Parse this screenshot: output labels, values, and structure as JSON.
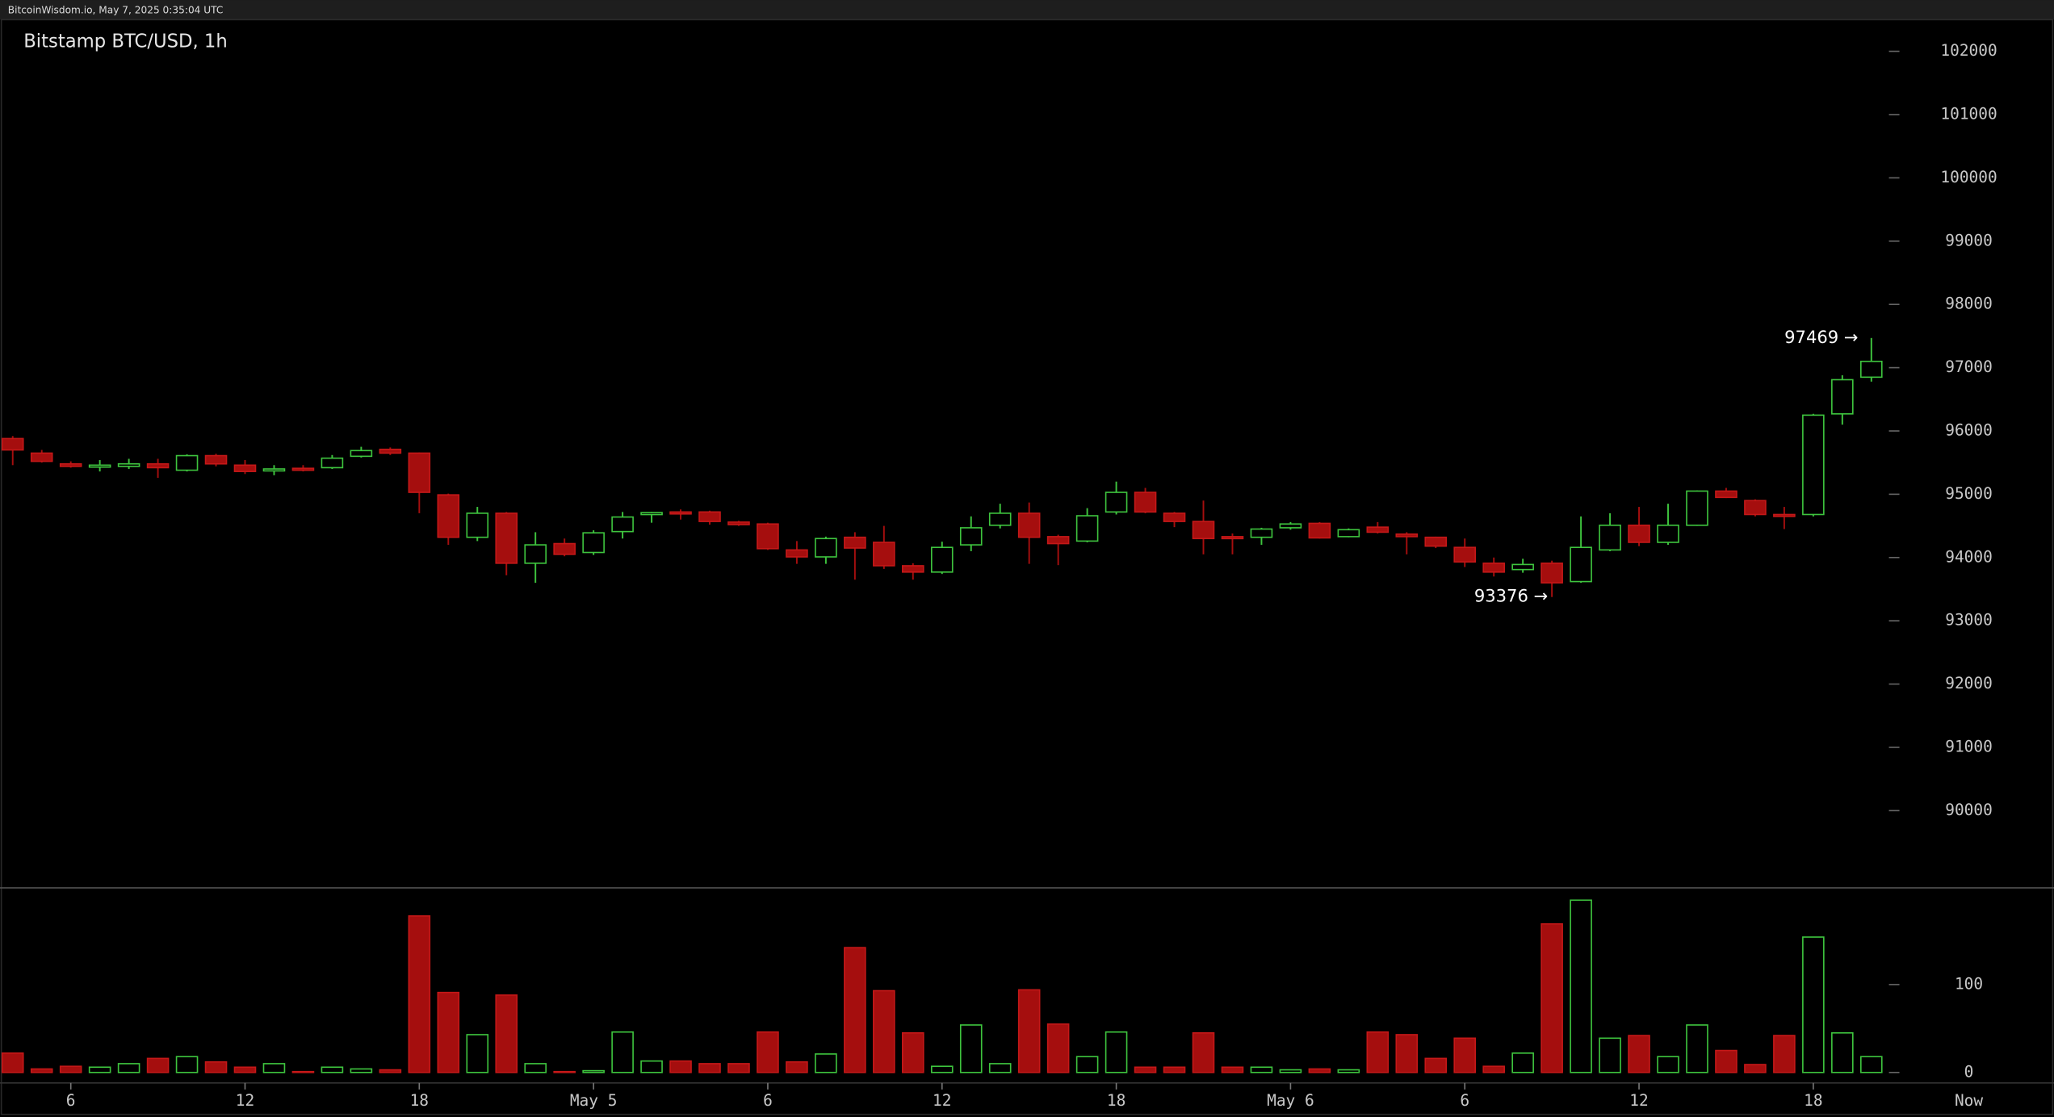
{
  "header": "BitcoinWisdom.io, May 7, 2025 0:35:04 UTC",
  "chart_data": {
    "type": "candlestick",
    "title": "Bitstamp BTC/USD, 1h",
    "categories": [
      null,
      null,
      "6",
      null,
      null,
      null,
      null,
      null,
      "12",
      null,
      null,
      null,
      null,
      null,
      "18",
      null,
      null,
      null,
      null,
      null,
      "May 5",
      null,
      null,
      null,
      null,
      null,
      "6",
      null,
      null,
      null,
      null,
      null,
      "12",
      null,
      null,
      null,
      null,
      null,
      "18",
      null,
      null,
      null,
      null,
      null,
      "May 6",
      null,
      null,
      null,
      null,
      null,
      "6",
      null,
      null,
      null,
      null,
      null,
      "12",
      null,
      null,
      null,
      null,
      null,
      "18",
      null,
      null
    ],
    "x_end_label": "Now",
    "open": [
      95880,
      95650,
      95480,
      95440,
      95440,
      95480,
      95380,
      95610,
      95460,
      95380,
      95410,
      95420,
      95600,
      95710,
      95650,
      94990,
      94320,
      94700,
      93910,
      94220,
      94080,
      94410,
      94690,
      94720,
      94720,
      94560,
      94530,
      94120,
      94010,
      94320,
      94240,
      93870,
      93770,
      94200,
      94510,
      94700,
      94330,
      94260,
      94720,
      95030,
      94700,
      94570,
      94330,
      94320,
      94470,
      94540,
      94330,
      94480,
      94370,
      94320,
      94160,
      93910,
      93810,
      93910,
      93620,
      94120,
      94510,
      94240,
      94510,
      95050,
      94900,
      94680,
      94680,
      96270,
      96850
    ],
    "high": [
      95920,
      95700,
      95520,
      95540,
      95560,
      95560,
      95630,
      95640,
      95540,
      95460,
      95460,
      95620,
      95750,
      95740,
      95660,
      95010,
      94800,
      94720,
      94400,
      94300,
      94430,
      94720,
      94720,
      94760,
      94740,
      94580,
      94550,
      94260,
      94330,
      94400,
      94500,
      93910,
      94250,
      94650,
      94850,
      94870,
      94360,
      94780,
      95200,
      95100,
      94720,
      94900,
      94380,
      94470,
      94560,
      94560,
      94460,
      94560,
      94400,
      94330,
      94300,
      94000,
      93980,
      93950,
      94650,
      94700,
      94800,
      94850,
      95060,
      95100,
      94920,
      94800,
      96270,
      96880,
      97469
    ],
    "low": [
      95460,
      95500,
      95420,
      95360,
      95400,
      95260,
      95360,
      95440,
      95320,
      95300,
      95360,
      95400,
      95580,
      95620,
      94700,
      94200,
      94260,
      93720,
      93600,
      94020,
      94040,
      94300,
      94550,
      94600,
      94520,
      94500,
      94120,
      93900,
      93900,
      93650,
      93820,
      93650,
      93740,
      94100,
      94460,
      93900,
      93880,
      94240,
      94680,
      94700,
      94480,
      94050,
      94050,
      94200,
      94440,
      94300,
      94320,
      94380,
      94050,
      94150,
      93850,
      93700,
      93760,
      93376,
      93600,
      94100,
      94180,
      94200,
      94500,
      94940,
      94650,
      94450,
      94650,
      96100,
      96780
    ],
    "close": [
      95700,
      95520,
      95440,
      95460,
      95480,
      95420,
      95610,
      95480,
      95360,
      95400,
      95390,
      95570,
      95690,
      95650,
      95030,
      94320,
      94700,
      93910,
      94200,
      94050,
      94390,
      94640,
      94710,
      94690,
      94570,
      94520,
      94140,
      94010,
      94300,
      94150,
      93870,
      93770,
      94160,
      94470,
      94700,
      94320,
      94220,
      94660,
      95030,
      94720,
      94570,
      94300,
      94300,
      94450,
      94530,
      94310,
      94440,
      94400,
      94330,
      94180,
      93930,
      93770,
      93890,
      93600,
      94160,
      94510,
      94240,
      94510,
      95050,
      94950,
      94680,
      94650,
      96250,
      96810,
      97100
    ],
    "volume": [
      22,
      4,
      7,
      6,
      10,
      16,
      18,
      12,
      6,
      10,
      1,
      6,
      4,
      3,
      178,
      91,
      43,
      88,
      10,
      1,
      2,
      46,
      13,
      13,
      10,
      10,
      46,
      12,
      21,
      142,
      93,
      45,
      7,
      54,
      10,
      94,
      55,
      18,
      46,
      6,
      6,
      45,
      6,
      6,
      3,
      4,
      3,
      46,
      43,
      16,
      39,
      7,
      22,
      169,
      196,
      39,
      42,
      18,
      54,
      25,
      9,
      42,
      154,
      45,
      18
    ],
    "up_color": "#3ec43e",
    "down_color": "#a50e0e",
    "ylim": [
      88780,
      102500
    ],
    "yticks": [
      90000,
      91000,
      92000,
      93000,
      94000,
      95000,
      96000,
      97000,
      98000,
      99000,
      100000,
      101000,
      102000
    ],
    "vol_ylim": [
      0,
      210
    ],
    "vol_yticks": [
      0,
      100
    ],
    "annotations": {
      "high": "97469 →",
      "low": "93376 →"
    }
  }
}
